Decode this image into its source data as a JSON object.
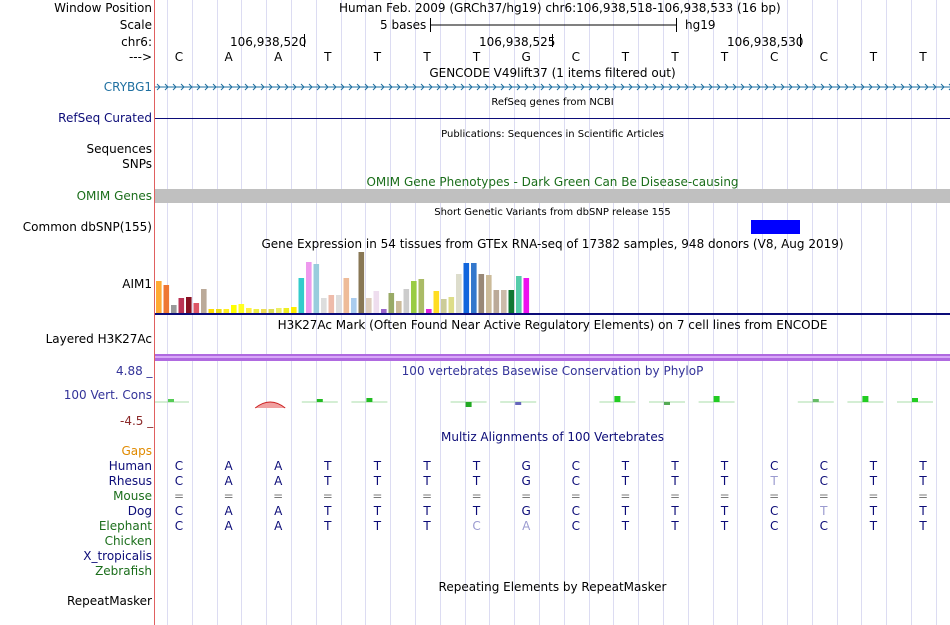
{
  "header": {
    "window_position_label": "Window Position",
    "scale_label": "Scale",
    "chrom_label": "chr6:",
    "arrow_label": "--->",
    "assembly_text": "Human Feb. 2009 (GRCh37/hg19)   chr6:106,938,518-106,938,533 (16 bp)",
    "scale_text": "5 bases",
    "scale_db": "hg19",
    "coord_ticks": [
      "106,938,520",
      "106,938,525",
      "106,938,530"
    ],
    "bases": [
      "C",
      "A",
      "A",
      "T",
      "T",
      "T",
      "T",
      "G",
      "C",
      "T",
      "T",
      "T",
      "C",
      "C",
      "T",
      "T"
    ]
  },
  "tracks": {
    "gencode": {
      "title": "GENCODE V49lift37 (1 items filtered out)",
      "gene": "CRYBG1",
      "color": "#1e6fa0"
    },
    "refseq": {
      "title": "RefSeq genes from NCBI",
      "label": "RefSeq Curated",
      "color": "#0c0c78"
    },
    "publications": {
      "title": "Publications: Sequences in Scientific Articles",
      "label_line1": "Sequences",
      "label_line2": "SNPs"
    },
    "omim": {
      "title": "OMIM Gene Phenotypes - Dark Green Can Be Disease-causing",
      "label": "OMIM Genes",
      "color": "#1b6e1b"
    },
    "dbsnp": {
      "title": "Short Genetic Variants from dbSNP release 155",
      "label": "Common dbSNP(155)",
      "color": "#0000ff"
    },
    "gtex": {
      "title": "Gene Expression in 54 tissues from GTEx RNA-seq of 17382 samples, 948 donors (V8, Aug 2019)",
      "label": "AIM1",
      "bars": [
        {
          "c": "#ffaa33",
          "v": 0.52
        },
        {
          "c": "#ee7733",
          "v": 0.46
        },
        {
          "c": "#999999",
          "v": 0.13
        },
        {
          "c": "#bb3355",
          "v": 0.25
        },
        {
          "c": "#881122",
          "v": 0.26
        },
        {
          "c": "#dd5566",
          "v": 0.17
        },
        {
          "c": "#bbaa99",
          "v": 0.4
        },
        {
          "c": "#ffdd00",
          "v": 0.06
        },
        {
          "c": "#eedd11",
          "v": 0.06
        },
        {
          "c": "#ffee22",
          "v": 0.06
        },
        {
          "c": "#ffff00",
          "v": 0.13
        },
        {
          "c": "#ffff22",
          "v": 0.14
        },
        {
          "c": "#ffee44",
          "v": 0.08
        },
        {
          "c": "#eeee44",
          "v": 0.06
        },
        {
          "c": "#eedd55",
          "v": 0.06
        },
        {
          "c": "#dddd55",
          "v": 0.06
        },
        {
          "c": "#eeee66",
          "v": 0.08
        },
        {
          "c": "#eeee22",
          "v": 0.08
        },
        {
          "c": "#ffee00",
          "v": 0.1
        },
        {
          "c": "#33cccc",
          "v": 0.58
        },
        {
          "c": "#ee99ee",
          "v": 0.84
        },
        {
          "c": "#99ccdd",
          "v": 0.8
        },
        {
          "c": "#dddddd",
          "v": 0.24
        },
        {
          "c": "#eebbaa",
          "v": 0.3
        },
        {
          "c": "#dddddd",
          "v": 0.3
        },
        {
          "c": "#eebb99",
          "v": 0.58
        },
        {
          "c": "#aaccee",
          "v": 0.24
        },
        {
          "c": "#887755",
          "v": 1.0
        },
        {
          "c": "#ddccbb",
          "v": 0.25
        },
        {
          "c": "#eeddee",
          "v": 0.36
        },
        {
          "c": "#9966cc",
          "v": 0.07
        },
        {
          "c": "#99aa66",
          "v": 0.32
        },
        {
          "c": "#ccbb99",
          "v": 0.2
        },
        {
          "c": "#cccccc",
          "v": 0.4
        },
        {
          "c": "#99cc44",
          "v": 0.52
        },
        {
          "c": "#aabb66",
          "v": 0.56
        },
        {
          "c": "#dd22dd",
          "v": 0.06
        },
        {
          "c": "#ffdd22",
          "v": 0.36
        },
        {
          "c": "#cccc99",
          "v": 0.23
        },
        {
          "c": "#dddd88",
          "v": 0.26
        },
        {
          "c": "#ddddcc",
          "v": 0.64
        },
        {
          "c": "#1166dd",
          "v": 0.82
        },
        {
          "c": "#3377cc",
          "v": 0.82
        },
        {
          "c": "#998877",
          "v": 0.64
        },
        {
          "c": "#ccbb99",
          "v": 0.63
        },
        {
          "c": "#bbaa99",
          "v": 0.37
        },
        {
          "c": "#ccbbaa",
          "v": 0.37
        },
        {
          "c": "#117733",
          "v": 0.37
        },
        {
          "c": "#55ccaa",
          "v": 0.6
        },
        {
          "c": "#ee11ee",
          "v": 0.58
        }
      ]
    },
    "h3k27ac": {
      "title": "H3K27Ac Mark (Often Found Near Active Regulatory Elements) on 7 cell lines from ENCODE",
      "label": "Layered H3K27Ac",
      "color": "#b06ae0"
    },
    "phylop": {
      "title": "100 vertebrates Basewise Conservation by PhyloP",
      "label": "100 Vert. Cons",
      "max": "4.88 _",
      "min": "-4.5 _",
      "color": "#333399"
    },
    "multiz": {
      "title": "Multiz Alignments of 100 Vertebrates",
      "species": [
        {
          "name": "Human",
          "color": "#0c0c78",
          "seq": [
            "C",
            "A",
            "A",
            "T",
            "T",
            "T",
            "T",
            "G",
            "C",
            "T",
            "T",
            "T",
            "C",
            "C",
            "T",
            "T"
          ]
        },
        {
          "name": "Rhesus",
          "color": "#0c0c78",
          "seq": [
            "C",
            "A",
            "A",
            "T",
            "T",
            "T",
            "T",
            "G",
            "C",
            "T",
            "T",
            "T",
            "T",
            "C",
            "T",
            "T"
          ]
        },
        {
          "name": "Mouse",
          "color": "#1b6e1b",
          "seq": [
            "=",
            "=",
            "=",
            "=",
            "=",
            "=",
            "=",
            "=",
            "=",
            "=",
            "=",
            "=",
            "=",
            "=",
            "=",
            "="
          ]
        },
        {
          "name": "Dog",
          "color": "#0c0c78",
          "seq": [
            "C",
            "A",
            "A",
            "T",
            "T",
            "T",
            "T",
            "G",
            "C",
            "T",
            "T",
            "T",
            "C",
            "T",
            "T",
            "T"
          ]
        },
        {
          "name": "Elephant",
          "color": "#1b6e1b",
          "seq": [
            "C",
            "A",
            "A",
            "T",
            "T",
            "T",
            "C",
            "A",
            "C",
            "T",
            "T",
            "T",
            "C",
            "C",
            "T",
            "T"
          ]
        },
        {
          "name": "Chicken",
          "color": "#1b6e1b",
          "seq": []
        },
        {
          "name": "X_tropicalis",
          "color": "#0c0c78",
          "seq": []
        },
        {
          "name": "Zebrafish",
          "color": "#1b6e1b",
          "seq": []
        }
      ]
    },
    "gaps": {
      "label": "Gaps",
      "color": "#e08a00"
    },
    "repeatmasker": {
      "title": "Repeating Elements by RepeatMasker",
      "label": "RepeatMasker"
    }
  }
}
